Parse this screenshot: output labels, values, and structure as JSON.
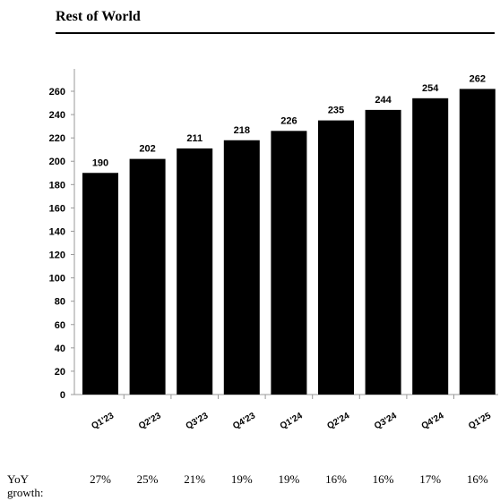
{
  "title": "Rest of World",
  "chart_data": {
    "type": "bar",
    "categories": [
      "Q1'23",
      "Q2'23",
      "Q3'23",
      "Q4'23",
      "Q1'24",
      "Q2'24",
      "Q3'24",
      "Q4'24",
      "Q1'25"
    ],
    "values": [
      190,
      202,
      211,
      218,
      226,
      235,
      244,
      254,
      262
    ],
    "data_labels": [
      "190",
      "202",
      "211",
      "218",
      "226",
      "235",
      "244",
      "254",
      "262"
    ],
    "ylim": [
      0,
      270
    ],
    "yticks": [
      0,
      20,
      40,
      60,
      80,
      100,
      120,
      140,
      160,
      180,
      200,
      220,
      240,
      260
    ],
    "bar_color": "#000000",
    "xlabel": "",
    "ylabel": ""
  },
  "growth": {
    "label": "YoY growth:",
    "values": [
      "27%",
      "25%",
      "21%",
      "19%",
      "19%",
      "16%",
      "16%",
      "17%",
      "16%"
    ]
  }
}
